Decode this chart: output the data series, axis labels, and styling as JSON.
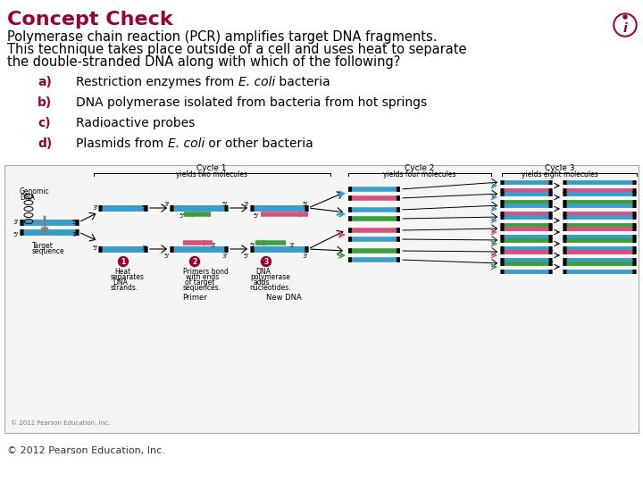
{
  "title": "Concept Check",
  "title_color": "#990033",
  "title_fontsize": 16,
  "body_fontsize": 10.5,
  "body_color": "#000000",
  "body_lines": [
    "Polymerase chain reaction (PCR) amplifies target DNA fragments.",
    "This technique takes place outside of a cell and uses heat to separate",
    "the double-stranded DNA along with which of the following?"
  ],
  "options": [
    {
      "label": "a)",
      "parts": [
        [
          "Restriction enzymes from ",
          false
        ],
        [
          "E. coli",
          true
        ],
        [
          " bacteria",
          false
        ]
      ]
    },
    {
      "label": "b)",
      "parts": [
        [
          "DNA polymerase isolated from bacteria from hot springs",
          false
        ]
      ]
    },
    {
      "label": "c)",
      "parts": [
        [
          "Radioactive probes",
          false
        ]
      ]
    },
    {
      "label": "d)",
      "parts": [
        [
          "Plasmids from ",
          false
        ],
        [
          "E. coli",
          true
        ],
        [
          " or other bacteria",
          false
        ]
      ]
    }
  ],
  "option_color": "#990033",
  "option_fontsize": 10,
  "bg_color": "#ffffff",
  "copyright_small": "© 2012 Pearson Education, Inc.",
  "copyright_bottom": "© 2012 Pearson Education, Inc.",
  "icon_color": "#990033",
  "blue": "#3a9dc8",
  "pink": "#d94f7e",
  "green": "#3d9e3d",
  "black": "#000000",
  "gray": "#888888"
}
